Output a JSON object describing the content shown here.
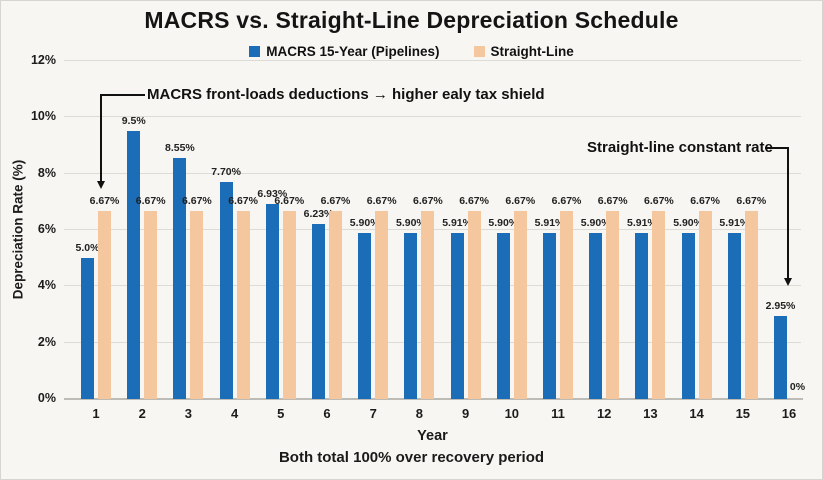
{
  "chart_data": {
    "type": "bar",
    "title": "MACRS vs. Straight-Line Depreciation Schedule",
    "xlabel": "Year",
    "ylabel": "Depreciation Rate (%)",
    "ylim": [
      0,
      12
    ],
    "yticks": [
      0,
      2,
      4,
      6,
      8,
      10,
      12
    ],
    "ytick_labels": [
      "0%",
      "2%",
      "4%",
      "6%",
      "8%",
      "10%",
      "12%"
    ],
    "grid": true,
    "legend_position": "top",
    "categories": [
      "1",
      "2",
      "3",
      "4",
      "5",
      "6",
      "7",
      "8",
      "9",
      "10",
      "11",
      "12",
      "13",
      "14",
      "15",
      "16"
    ],
    "series": [
      {
        "name": "MACRS 15-Year (Pipelines)",
        "color": "#1c6db8",
        "values": [
          5.0,
          9.5,
          8.55,
          7.7,
          6.93,
          6.23,
          5.9,
          5.9,
          5.91,
          5.9,
          5.91,
          5.9,
          5.91,
          5.9,
          5.91,
          2.95
        ],
        "labels": [
          "5.0%",
          "9.5%",
          "8.55%",
          "7.70%",
          "6.93%",
          "6.23%",
          "5.90%",
          "5.90%",
          "5.91%",
          "5.90%",
          "5.91%",
          "5.90%",
          "5.91%",
          "5.90%",
          "5.91%",
          "2.95%"
        ]
      },
      {
        "name": "Straight-Line",
        "color": "#f5c79e",
        "values": [
          6.67,
          6.67,
          6.67,
          6.67,
          6.67,
          6.67,
          6.67,
          6.67,
          6.67,
          6.67,
          6.67,
          6.67,
          6.67,
          6.67,
          6.67,
          0
        ],
        "labels": [
          "6.67%",
          "6.67%",
          "6.67%",
          "6.67%",
          "6.67%",
          "6.67%",
          "6.67%",
          "6.67%",
          "6.67%",
          "6.67%",
          "6.67%",
          "6.67%",
          "6.67%",
          "6.67%",
          "6.67%",
          "0%"
        ]
      }
    ],
    "annotations": {
      "left_callout": "MACRS front-loads deductions → higher ealy tax shield",
      "right_callout": "Straight-line constant rate",
      "footnote": "Both total 100% over recovery period"
    }
  }
}
